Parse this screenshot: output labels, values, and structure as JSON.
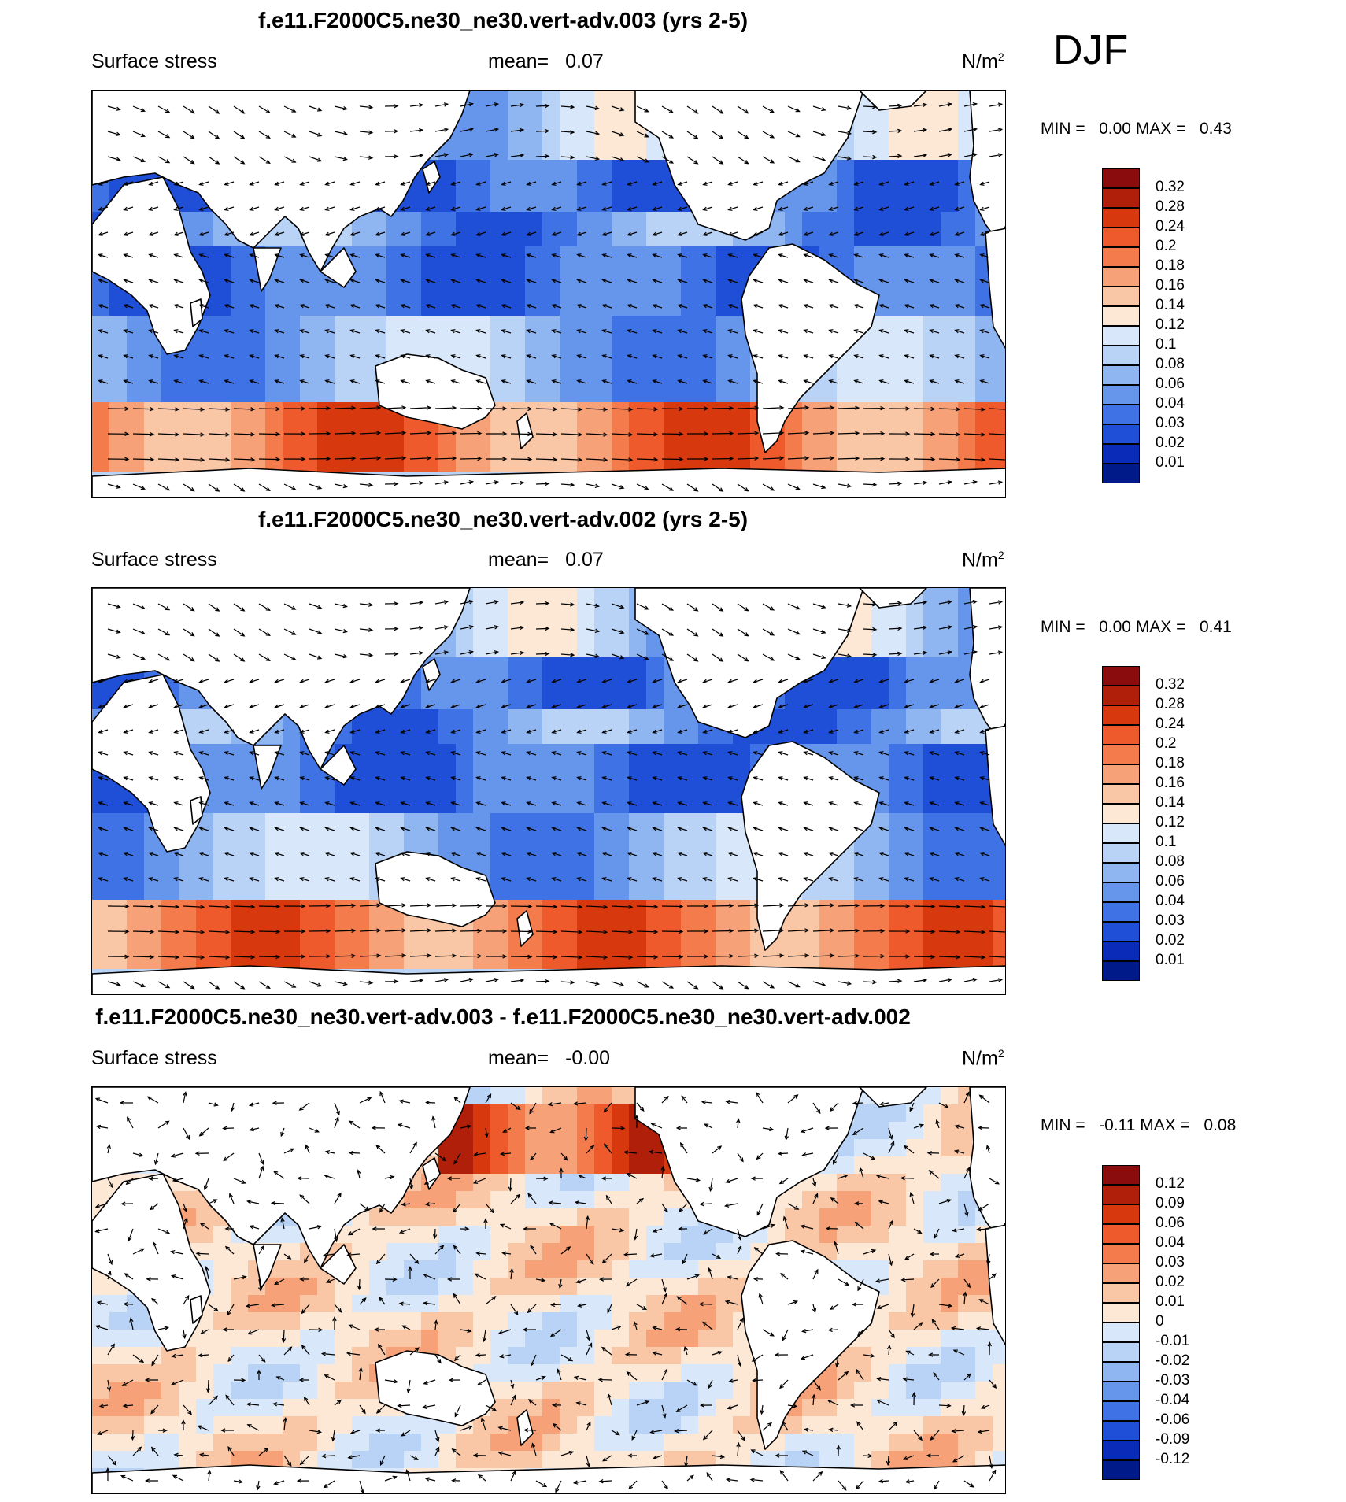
{
  "season": "DJF",
  "panels": [
    {
      "title": "f.e11.F2000C5.ne30_ne30.vert-adv.003 (yrs 2-5)",
      "left_label": "Surface stress",
      "mean_label": "mean=",
      "mean_value": "0.07",
      "units": "N/m",
      "units_exp": "2",
      "min_label": "MIN =",
      "min_value": "0.00",
      "max_label": "MAX =",
      "max_value": "0.43",
      "colorbar": {
        "labels": [
          "0.32",
          "0.28",
          "0.24",
          "0.2",
          "0.18",
          "0.16",
          "0.14",
          "0.12",
          "0.1",
          "0.08",
          "0.06",
          "0.04",
          "0.03",
          "0.02",
          "0.01"
        ],
        "colors": [
          "#8b0c0c",
          "#b01f0a",
          "#d8380e",
          "#ee5a2c",
          "#f47c4c",
          "#f6a178",
          "#f9c6a6",
          "#fde7d5",
          "#d8e8fa",
          "#b8d3f6",
          "#8fb6f1",
          "#6596ec",
          "#3f72e4",
          "#1f4fd6",
          "#0a2ab8",
          "#001a8a"
        ]
      },
      "field": "mean"
    },
    {
      "title": "f.e11.F2000C5.ne30_ne30.vert-adv.002 (yrs 2-5)",
      "left_label": "Surface stress",
      "mean_label": "mean=",
      "mean_value": "0.07",
      "units": "N/m",
      "units_exp": "2",
      "min_label": "MIN =",
      "min_value": "0.00",
      "max_label": "MAX =",
      "max_value": "0.41",
      "colorbar": {
        "labels": [
          "0.32",
          "0.28",
          "0.24",
          "0.2",
          "0.18",
          "0.16",
          "0.14",
          "0.12",
          "0.1",
          "0.08",
          "0.06",
          "0.04",
          "0.03",
          "0.02",
          "0.01"
        ],
        "colors": [
          "#8b0c0c",
          "#b01f0a",
          "#d8380e",
          "#ee5a2c",
          "#f47c4c",
          "#f6a178",
          "#f9c6a6",
          "#fde7d5",
          "#d8e8fa",
          "#b8d3f6",
          "#8fb6f1",
          "#6596ec",
          "#3f72e4",
          "#1f4fd6",
          "#0a2ab8",
          "#001a8a"
        ]
      },
      "field": "mean"
    },
    {
      "title": "f.e11.F2000C5.ne30_ne30.vert-adv.003 - f.e11.F2000C5.ne30_ne30.vert-adv.002",
      "left_label": "Surface stress",
      "mean_label": "mean=",
      "mean_value": "-0.00",
      "units": "N/m",
      "units_exp": "2",
      "min_label": "MIN =",
      "min_value": "-0.11",
      "max_label": "MAX =",
      "max_value": "0.08",
      "colorbar": {
        "labels": [
          "0.12",
          "0.09",
          "0.06",
          "0.04",
          "0.03",
          "0.02",
          "0.01",
          "0",
          "-0.01",
          "-0.02",
          "-0.03",
          "-0.04",
          "-0.06",
          "-0.09",
          "-0.12"
        ],
        "colors": [
          "#8b0c0c",
          "#b01f0a",
          "#d8380e",
          "#ee5a2c",
          "#f47c4c",
          "#f6a178",
          "#f9c6a6",
          "#fde7d5",
          "#d8e8fa",
          "#b8d3f6",
          "#8fb6f1",
          "#6596ec",
          "#3f72e4",
          "#1f4fd6",
          "#0a2ab8",
          "#001a8a"
        ]
      },
      "field": "diff"
    }
  ]
}
